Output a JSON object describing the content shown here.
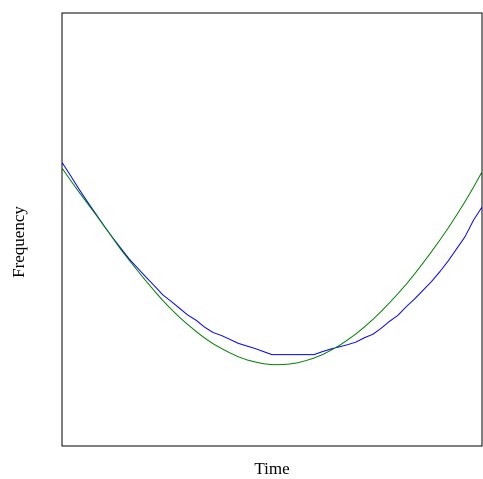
{
  "chart_data": {
    "type": "line",
    "title": "",
    "xlabel": "Time",
    "ylabel": "Frequency",
    "xlim": [
      0,
      1
    ],
    "ylim": [
      0,
      1
    ],
    "grid": false,
    "legend": "none",
    "series": [
      {
        "color": "#0000ff",
        "x": [
          0.0,
          0.02,
          0.04,
          0.06,
          0.08,
          0.1,
          0.12,
          0.14,
          0.16,
          0.18,
          0.2,
          0.22,
          0.24,
          0.26,
          0.28,
          0.3,
          0.32,
          0.34,
          0.36,
          0.38,
          0.4,
          0.42,
          0.44,
          0.46,
          0.48,
          0.5,
          0.52,
          0.54,
          0.56,
          0.58,
          0.6,
          0.62,
          0.64,
          0.66,
          0.68,
          0.7,
          0.72,
          0.74,
          0.76,
          0.78,
          0.8,
          0.82,
          0.84,
          0.86,
          0.88,
          0.9,
          0.92,
          0.94,
          0.96,
          0.98,
          1.0
        ],
        "y": [
          0.655,
          0.625,
          0.594,
          0.565,
          0.537,
          0.509,
          0.482,
          0.457,
          0.432,
          0.411,
          0.39,
          0.37,
          0.349,
          0.334,
          0.318,
          0.302,
          0.29,
          0.274,
          0.262,
          0.255,
          0.246,
          0.237,
          0.231,
          0.225,
          0.218,
          0.211,
          0.211,
          0.211,
          0.211,
          0.211,
          0.211,
          0.218,
          0.224,
          0.229,
          0.234,
          0.24,
          0.25,
          0.258,
          0.272,
          0.288,
          0.302,
          0.322,
          0.34,
          0.36,
          0.38,
          0.403,
          0.428,
          0.456,
          0.484,
          0.522,
          0.552
        ]
      },
      {
        "color": "#008000",
        "x": [
          0.0,
          0.02,
          0.04,
          0.06,
          0.08,
          0.1,
          0.12,
          0.14,
          0.16,
          0.18,
          0.2,
          0.22,
          0.24,
          0.26,
          0.28,
          0.3,
          0.32,
          0.34,
          0.36,
          0.38,
          0.4,
          0.42,
          0.44,
          0.46,
          0.48,
          0.5,
          0.52,
          0.54,
          0.56,
          0.58,
          0.6,
          0.62,
          0.64,
          0.66,
          0.68,
          0.7,
          0.72,
          0.74,
          0.76,
          0.78,
          0.8,
          0.82,
          0.84,
          0.86,
          0.88,
          0.9,
          0.92,
          0.94,
          0.96,
          0.98,
          1.0
        ],
        "y": [
          0.642,
          0.614,
          0.587,
          0.561,
          0.535,
          0.508,
          0.481,
          0.454,
          0.429,
          0.405,
          0.381,
          0.358,
          0.336,
          0.316,
          0.297,
          0.28,
          0.264,
          0.249,
          0.236,
          0.225,
          0.215,
          0.206,
          0.199,
          0.194,
          0.19,
          0.188,
          0.188,
          0.189,
          0.192,
          0.197,
          0.203,
          0.211,
          0.221,
          0.232,
          0.245,
          0.259,
          0.275,
          0.292,
          0.311,
          0.331,
          0.352,
          0.374,
          0.398,
          0.423,
          0.449,
          0.476,
          0.504,
          0.534,
          0.565,
          0.598,
          0.633
        ]
      }
    ]
  }
}
